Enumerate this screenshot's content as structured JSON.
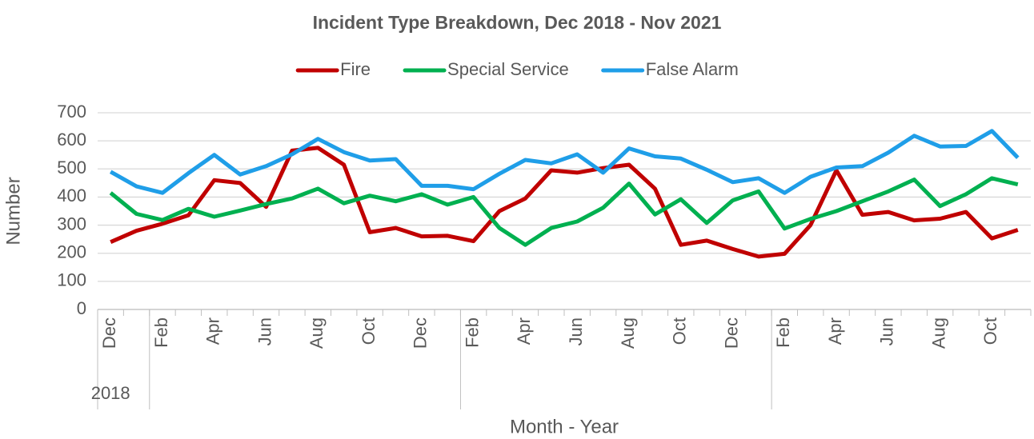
{
  "chart_data": {
    "type": "line",
    "title": "Incident Type Breakdown, Dec 2018 - Nov 2021",
    "x_label": "Month - Year",
    "y_label": "Number",
    "categories": [
      "Dec",
      null,
      "Feb",
      null,
      "Apr",
      null,
      "Jun",
      null,
      "Aug",
      null,
      "Oct",
      null,
      "Dec",
      null,
      "Feb",
      null,
      "Apr",
      null,
      "Jun",
      null,
      "Aug",
      null,
      "Oct",
      null,
      "Dec",
      null,
      "Feb",
      null,
      "Apr",
      null,
      "Jun",
      null,
      "Aug",
      null,
      "Oct",
      null
    ],
    "groups": [
      {
        "label": "2018",
        "count": 2
      },
      {
        "label": null,
        "count": 12
      },
      {
        "label": null,
        "count": 12
      },
      {
        "label": null,
        "count": 10
      }
    ],
    "series": [
      {
        "name": "Fire",
        "color": "#c00000",
        "values": [
          240,
          280,
          305,
          335,
          460,
          450,
          365,
          565,
          575,
          515,
          275,
          290,
          260,
          262,
          243,
          350,
          395,
          495,
          487,
          503,
          515,
          430,
          230,
          245,
          215,
          188,
          198,
          300,
          495,
          337,
          347,
          317,
          323,
          347,
          253,
          283
        ]
      },
      {
        "name": "Special Service",
        "color": "#00b050",
        "values": [
          415,
          340,
          318,
          358,
          330,
          352,
          375,
          395,
          430,
          378,
          405,
          385,
          410,
          373,
          400,
          290,
          230,
          290,
          313,
          362,
          448,
          338,
          392,
          308,
          388,
          420,
          288,
          322,
          350,
          385,
          420,
          462,
          368,
          410,
          467,
          445
        ]
      },
      {
        "name": "False Alarm",
        "color": "#1f9ee8",
        "values": [
          490,
          438,
          415,
          485,
          550,
          480,
          510,
          552,
          607,
          560,
          530,
          535,
          440,
          440,
          428,
          483,
          532,
          520,
          552,
          487,
          573,
          545,
          537,
          497,
          453,
          467,
          415,
          472,
          505,
          510,
          558,
          618,
          580,
          582,
          635,
          540
        ]
      }
    ],
    "ylim": [
      0,
      700
    ],
    "yticks": [
      0,
      100,
      200,
      300,
      400,
      500,
      600,
      700
    ],
    "grid": true,
    "legend": "top"
  }
}
